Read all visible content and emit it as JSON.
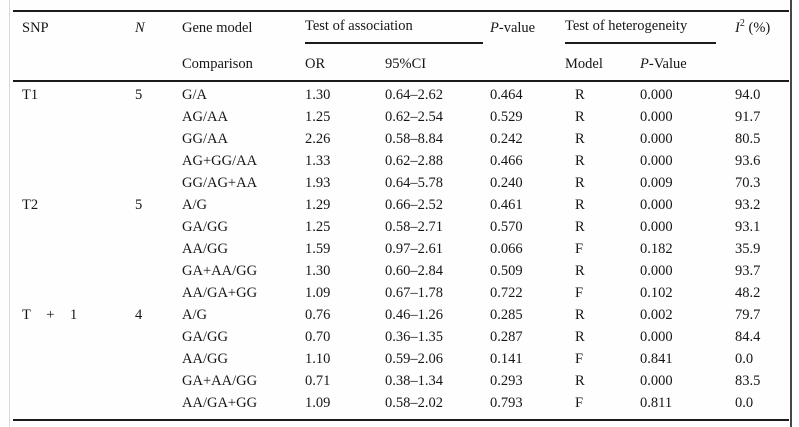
{
  "table": {
    "header": {
      "snp": "SNP",
      "n": "N",
      "gene_model": "Gene model",
      "comparison": "Comparison",
      "association_spanner": "Test of association",
      "or": "OR",
      "ci": "95%CI",
      "p_italic": "P",
      "p_rest": "-value",
      "heterogeneity_spanner": "Test of heterogeneity",
      "model": "Model",
      "p_het_italic": "P",
      "p_het_rest": "-Value",
      "i2_italic": "I",
      "i2_sup": "2",
      "i2_rest": " (%)"
    },
    "groups": [
      {
        "snp": "T1",
        "n": "5",
        "rows": [
          {
            "comparison": "G/A",
            "or": "1.30",
            "ci": "0.64–2.62",
            "p": "0.464",
            "model": "R",
            "p_het": "0.000",
            "i2": "94.0"
          },
          {
            "comparison": "AG/AA",
            "or": "1.25",
            "ci": "0.62–2.54",
            "p": "0.529",
            "model": "R",
            "p_het": "0.000",
            "i2": "91.7"
          },
          {
            "comparison": "GG/AA",
            "or": "2.26",
            "ci": "0.58–8.84",
            "p": "0.242",
            "model": "R",
            "p_het": "0.000",
            "i2": "80.5"
          },
          {
            "comparison": "AG+GG/AA",
            "or": "1.33",
            "ci": "0.62–2.88",
            "p": "0.466",
            "model": "R",
            "p_het": "0.000",
            "i2": "93.6"
          },
          {
            "comparison": "GG/AG+AA",
            "or": "1.93",
            "ci": "0.64–5.78",
            "p": "0.240",
            "model": "R",
            "p_het": "0.009",
            "i2": "70.3"
          }
        ]
      },
      {
        "snp": "T2",
        "n": "5",
        "rows": [
          {
            "comparison": "A/G",
            "or": "1.29",
            "ci": "0.66–2.52",
            "p": "0.461",
            "model": "R",
            "p_het": "0.000",
            "i2": "93.2"
          },
          {
            "comparison": "GA/GG",
            "or": "1.25",
            "ci": "0.58–2.71",
            "p": "0.570",
            "model": "R",
            "p_het": "0.000",
            "i2": "93.1"
          },
          {
            "comparison": "AA/GG",
            "or": "1.59",
            "ci": "0.97–2.61",
            "p": "0.066",
            "model": "F",
            "p_het": "0.182",
            "i2": "35.9"
          },
          {
            "comparison": "GA+AA/GG",
            "or": "1.30",
            "ci": "0.60–2.84",
            "p": "0.509",
            "model": "R",
            "p_het": "0.000",
            "i2": "93.7"
          },
          {
            "comparison": "AA/GA+GG",
            "or": "1.09",
            "ci": "0.67–1.78",
            "p": "0.722",
            "model": "F",
            "p_het": "0.102",
            "i2": "48.2"
          }
        ]
      },
      {
        "snp": "T + 1",
        "n": "4",
        "rows": [
          {
            "comparison": "A/G",
            "or": "0.76",
            "ci": "0.46–1.26",
            "p": "0.285",
            "model": "R",
            "p_het": "0.002",
            "i2": "79.7"
          },
          {
            "comparison": "GA/GG",
            "or": "0.70",
            "ci": "0.36–1.35",
            "p": "0.287",
            "model": "R",
            "p_het": "0.000",
            "i2": "84.4"
          },
          {
            "comparison": "AA/GG",
            "or": "1.10",
            "ci": "0.59–2.06",
            "p": "0.141",
            "model": "F",
            "p_het": "0.841",
            "i2": "0.0"
          },
          {
            "comparison": "GA+AA/GG",
            "or": "0.71",
            "ci": "0.38–1.34",
            "p": "0.293",
            "model": "R",
            "p_het": "0.000",
            "i2": "83.5"
          },
          {
            "comparison": "AA/GA+GG",
            "or": "1.09",
            "ci": "0.58–2.02",
            "p": "0.793",
            "model": "F",
            "p_het": "0.811",
            "i2": "0.0"
          }
        ]
      }
    ]
  }
}
